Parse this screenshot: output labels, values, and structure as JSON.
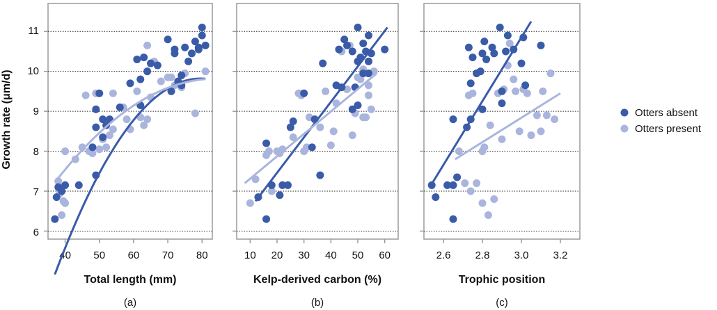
{
  "colors": {
    "absent": "#3a5ba8",
    "present": "#aab5dd",
    "grid": "#222222",
    "frame": "#9a9a9a"
  },
  "ylabel": "Growth rate (μm/d)",
  "yticks": [
    6,
    7,
    8,
    9,
    10,
    11
  ],
  "ylim": [
    5.8,
    11.7
  ],
  "legend": {
    "absent": "Otters absent",
    "present": "Otters present",
    "placement": "right"
  },
  "chart_data": [
    {
      "type": "scatter",
      "panel_label": "(a)",
      "xlabel": "Total length (mm)",
      "xticks": [
        40,
        50,
        60,
        70,
        80
      ],
      "xlim": [
        35,
        83
      ],
      "series": [
        {
          "name": "Otters absent",
          "points": [
            [
              37,
              6.3
            ],
            [
              37.5,
              6.85
            ],
            [
              38,
              7.1
            ],
            [
              39,
              7.0
            ],
            [
              40,
              7.15
            ],
            [
              44,
              7.15
            ],
            [
              48,
              8.1
            ],
            [
              49,
              7.4
            ],
            [
              49,
              8.6
            ],
            [
              49,
              9.05
            ],
            [
              50,
              9.45
            ],
            [
              51,
              8.35
            ],
            [
              51,
              8.8
            ],
            [
              52,
              8.65
            ],
            [
              53,
              8.8
            ],
            [
              56,
              9.1
            ],
            [
              59,
              9.7
            ],
            [
              61,
              10.3
            ],
            [
              62,
              9.15
            ],
            [
              62,
              9.8
            ],
            [
              63,
              10.35
            ],
            [
              64,
              10.0
            ],
            [
              65,
              10.2
            ],
            [
              67,
              10.15
            ],
            [
              70,
              10.8
            ],
            [
              71,
              9.5
            ],
            [
              72,
              10.55
            ],
            [
              72,
              10.45
            ],
            [
              73,
              9.75
            ],
            [
              74,
              9.65
            ],
            [
              74,
              9.9
            ],
            [
              75,
              10.6
            ],
            [
              76,
              10.25
            ],
            [
              77,
              10.45
            ],
            [
              78,
              10.75
            ],
            [
              79,
              10.55
            ],
            [
              79,
              10.6
            ],
            [
              80,
              10.9
            ],
            [
              80,
              11.1
            ],
            [
              81,
              10.65
            ]
          ]
        },
        {
          "name": "Otters present",
          "points": [
            [
              38,
              7.25
            ],
            [
              38.5,
              6.95
            ],
            [
              39,
              6.4
            ],
            [
              39.5,
              6.75
            ],
            [
              40,
              6.7
            ],
            [
              40,
              8.0
            ],
            [
              43,
              7.8
            ],
            [
              45,
              8.1
            ],
            [
              46,
              9.4
            ],
            [
              47,
              8.0
            ],
            [
              48,
              7.95
            ],
            [
              49,
              9.45
            ],
            [
              50,
              8.05
            ],
            [
              51,
              8.3
            ],
            [
              52,
              8.1
            ],
            [
              53,
              8.4
            ],
            [
              54,
              8.55
            ],
            [
              54,
              9.45
            ],
            [
              57,
              9.1
            ],
            [
              58,
              8.8
            ],
            [
              59,
              8.55
            ],
            [
              61,
              9.5
            ],
            [
              62,
              8.85
            ],
            [
              63,
              8.65
            ],
            [
              64,
              8.8
            ],
            [
              64,
              10.65
            ],
            [
              65,
              9.35
            ],
            [
              66,
              10.25
            ],
            [
              68,
              9.75
            ],
            [
              70,
              9.85
            ],
            [
              71,
              9.85
            ],
            [
              72,
              9.65
            ],
            [
              74,
              9.6
            ],
            [
              75,
              9.95
            ],
            [
              78,
              8.95
            ],
            [
              81,
              10.0
            ]
          ]
        }
      ],
      "trendlines": [
        {
          "series": "Otters absent",
          "kind": "quadratic",
          "coef": [
            -7.3,
            0.43,
            -0.0027
          ],
          "x_range": [
            37,
            81
          ]
        },
        {
          "series": "Otters present",
          "kind": "quadratic",
          "coef": [
            1.51,
            0.198,
            -0.00118
          ],
          "x_range": [
            37,
            81
          ]
        }
      ]
    },
    {
      "type": "scatter",
      "panel_label": "(b)",
      "xlabel": "Kelp-derived carbon (%)",
      "xticks": [
        10,
        20,
        30,
        40,
        50,
        60
      ],
      "xlim": [
        5,
        65
      ],
      "series": [
        {
          "name": "Otters absent",
          "points": [
            [
              13,
              6.85
            ],
            [
              16,
              6.3
            ],
            [
              16,
              8.2
            ],
            [
              18,
              7.15
            ],
            [
              21,
              6.9
            ],
            [
              22,
              7.15
            ],
            [
              24,
              7.15
            ],
            [
              25,
              8.6
            ],
            [
              26,
              8.75
            ],
            [
              30,
              9.45
            ],
            [
              33,
              8.1
            ],
            [
              34,
              8.8
            ],
            [
              36,
              7.4
            ],
            [
              37,
              10.2
            ],
            [
              42,
              9.65
            ],
            [
              43,
              10.55
            ],
            [
              44,
              9.6
            ],
            [
              45,
              10.8
            ],
            [
              46,
              10.65
            ],
            [
              48,
              10.5
            ],
            [
              48,
              9.05
            ],
            [
              49,
              9.6
            ],
            [
              50,
              9.15
            ],
            [
              50,
              10.25
            ],
            [
              50,
              11.1
            ],
            [
              51,
              10.35
            ],
            [
              52,
              9.95
            ],
            [
              52,
              10.7
            ],
            [
              53,
              10.5
            ],
            [
              54,
              10.9
            ],
            [
              54,
              9.95
            ],
            [
              54,
              10.25
            ],
            [
              55,
              10.45
            ],
            [
              60,
              10.55
            ]
          ]
        },
        {
          "name": "Otters present",
          "points": [
            [
              10,
              6.7
            ],
            [
              12,
              7.3
            ],
            [
              16,
              7.9
            ],
            [
              17,
              8.0
            ],
            [
              18,
              7.0
            ],
            [
              20,
              8.0
            ],
            [
              21,
              7.95
            ],
            [
              22,
              8.05
            ],
            [
              26,
              8.35
            ],
            [
              28,
              9.45
            ],
            [
              29,
              9.4
            ],
            [
              30,
              8.0
            ],
            [
              31,
              8.1
            ],
            [
              32,
              8.85
            ],
            [
              36,
              8.6
            ],
            [
              38,
              9.5
            ],
            [
              40,
              8.15
            ],
            [
              41,
              8.5
            ],
            [
              42,
              9.2
            ],
            [
              44,
              10.5
            ],
            [
              46,
              9.55
            ],
            [
              47,
              10.65
            ],
            [
              48,
              8.4
            ],
            [
              49,
              8.95
            ],
            [
              50,
              9.85
            ],
            [
              51,
              9.8
            ],
            [
              52,
              10.05
            ],
            [
              52,
              8.85
            ],
            [
              53,
              8.85
            ],
            [
              54,
              9.4
            ],
            [
              54,
              9.65
            ],
            [
              55,
              9.05
            ],
            [
              56,
              10.0
            ]
          ]
        }
      ],
      "trendlines": [
        {
          "series": "Otters absent",
          "kind": "linear",
          "x_range": [
            12,
            61
          ],
          "y_range": [
            6.75,
            11.1
          ]
        },
        {
          "series": "Otters present",
          "kind": "linear",
          "x_range": [
            8,
            57
          ],
          "y_range": [
            7.2,
            9.95
          ]
        }
      ]
    },
    {
      "type": "scatter",
      "panel_label": "(c)",
      "xlabel": "Trophic position",
      "xticks": [
        "2.6",
        "2.8",
        "3.0",
        "3.2"
      ],
      "xlim": [
        2.5,
        3.3
      ],
      "series": [
        {
          "name": "Otters absent",
          "points": [
            [
              2.54,
              7.15
            ],
            [
              2.56,
              6.85
            ],
            [
              2.62,
              7.15
            ],
            [
              2.65,
              6.3
            ],
            [
              2.65,
              7.15
            ],
            [
              2.65,
              8.8
            ],
            [
              2.67,
              7.35
            ],
            [
              2.72,
              8.6
            ],
            [
              2.73,
              10.6
            ],
            [
              2.74,
              8.8
            ],
            [
              2.74,
              9.7
            ],
            [
              2.75,
              10.35
            ],
            [
              2.77,
              9.95
            ],
            [
              2.79,
              10.0
            ],
            [
              2.8,
              10.45
            ],
            [
              2.8,
              9.05
            ],
            [
              2.81,
              10.75
            ],
            [
              2.82,
              10.3
            ],
            [
              2.85,
              10.6
            ],
            [
              2.86,
              10.45
            ],
            [
              2.89,
              11.1
            ],
            [
              2.9,
              9.5
            ],
            [
              2.9,
              9.2
            ],
            [
              2.92,
              10.5
            ],
            [
              2.93,
              10.9
            ],
            [
              2.96,
              10.55
            ],
            [
              3.0,
              10.2
            ],
            [
              3.01,
              10.85
            ],
            [
              3.02,
              9.65
            ],
            [
              3.1,
              10.65
            ]
          ]
        },
        {
          "name": "Otters present",
          "points": [
            [
              2.68,
              8.0
            ],
            [
              2.71,
              7.2
            ],
            [
              2.73,
              9.4
            ],
            [
              2.74,
              7.0
            ],
            [
              2.75,
              9.45
            ],
            [
              2.77,
              7.2
            ],
            [
              2.8,
              8.0
            ],
            [
              2.8,
              6.7
            ],
            [
              2.81,
              8.1
            ],
            [
              2.83,
              6.4
            ],
            [
              2.84,
              8.65
            ],
            [
              2.86,
              6.8
            ],
            [
              2.88,
              9.45
            ],
            [
              2.9,
              8.3
            ],
            [
              2.91,
              9.55
            ],
            [
              2.93,
              10.15
            ],
            [
              2.94,
              10.7
            ],
            [
              2.96,
              9.8
            ],
            [
              2.97,
              9.5
            ],
            [
              2.99,
              8.5
            ],
            [
              3.01,
              9.55
            ],
            [
              3.03,
              9.45
            ],
            [
              3.05,
              8.4
            ],
            [
              3.08,
              8.9
            ],
            [
              3.1,
              8.5
            ],
            [
              3.11,
              9.5
            ],
            [
              3.13,
              8.9
            ],
            [
              3.15,
              9.95
            ],
            [
              3.17,
              8.8
            ]
          ]
        }
      ],
      "trendlines": [
        {
          "series": "Otters absent",
          "kind": "linear",
          "x_range": [
            2.53,
            3.05
          ],
          "y_range": [
            7.1,
            11.25
          ]
        },
        {
          "series": "Otters present",
          "kind": "linear",
          "x_range": [
            2.66,
            3.2
          ],
          "y_range": [
            7.8,
            9.45
          ]
        }
      ]
    }
  ]
}
